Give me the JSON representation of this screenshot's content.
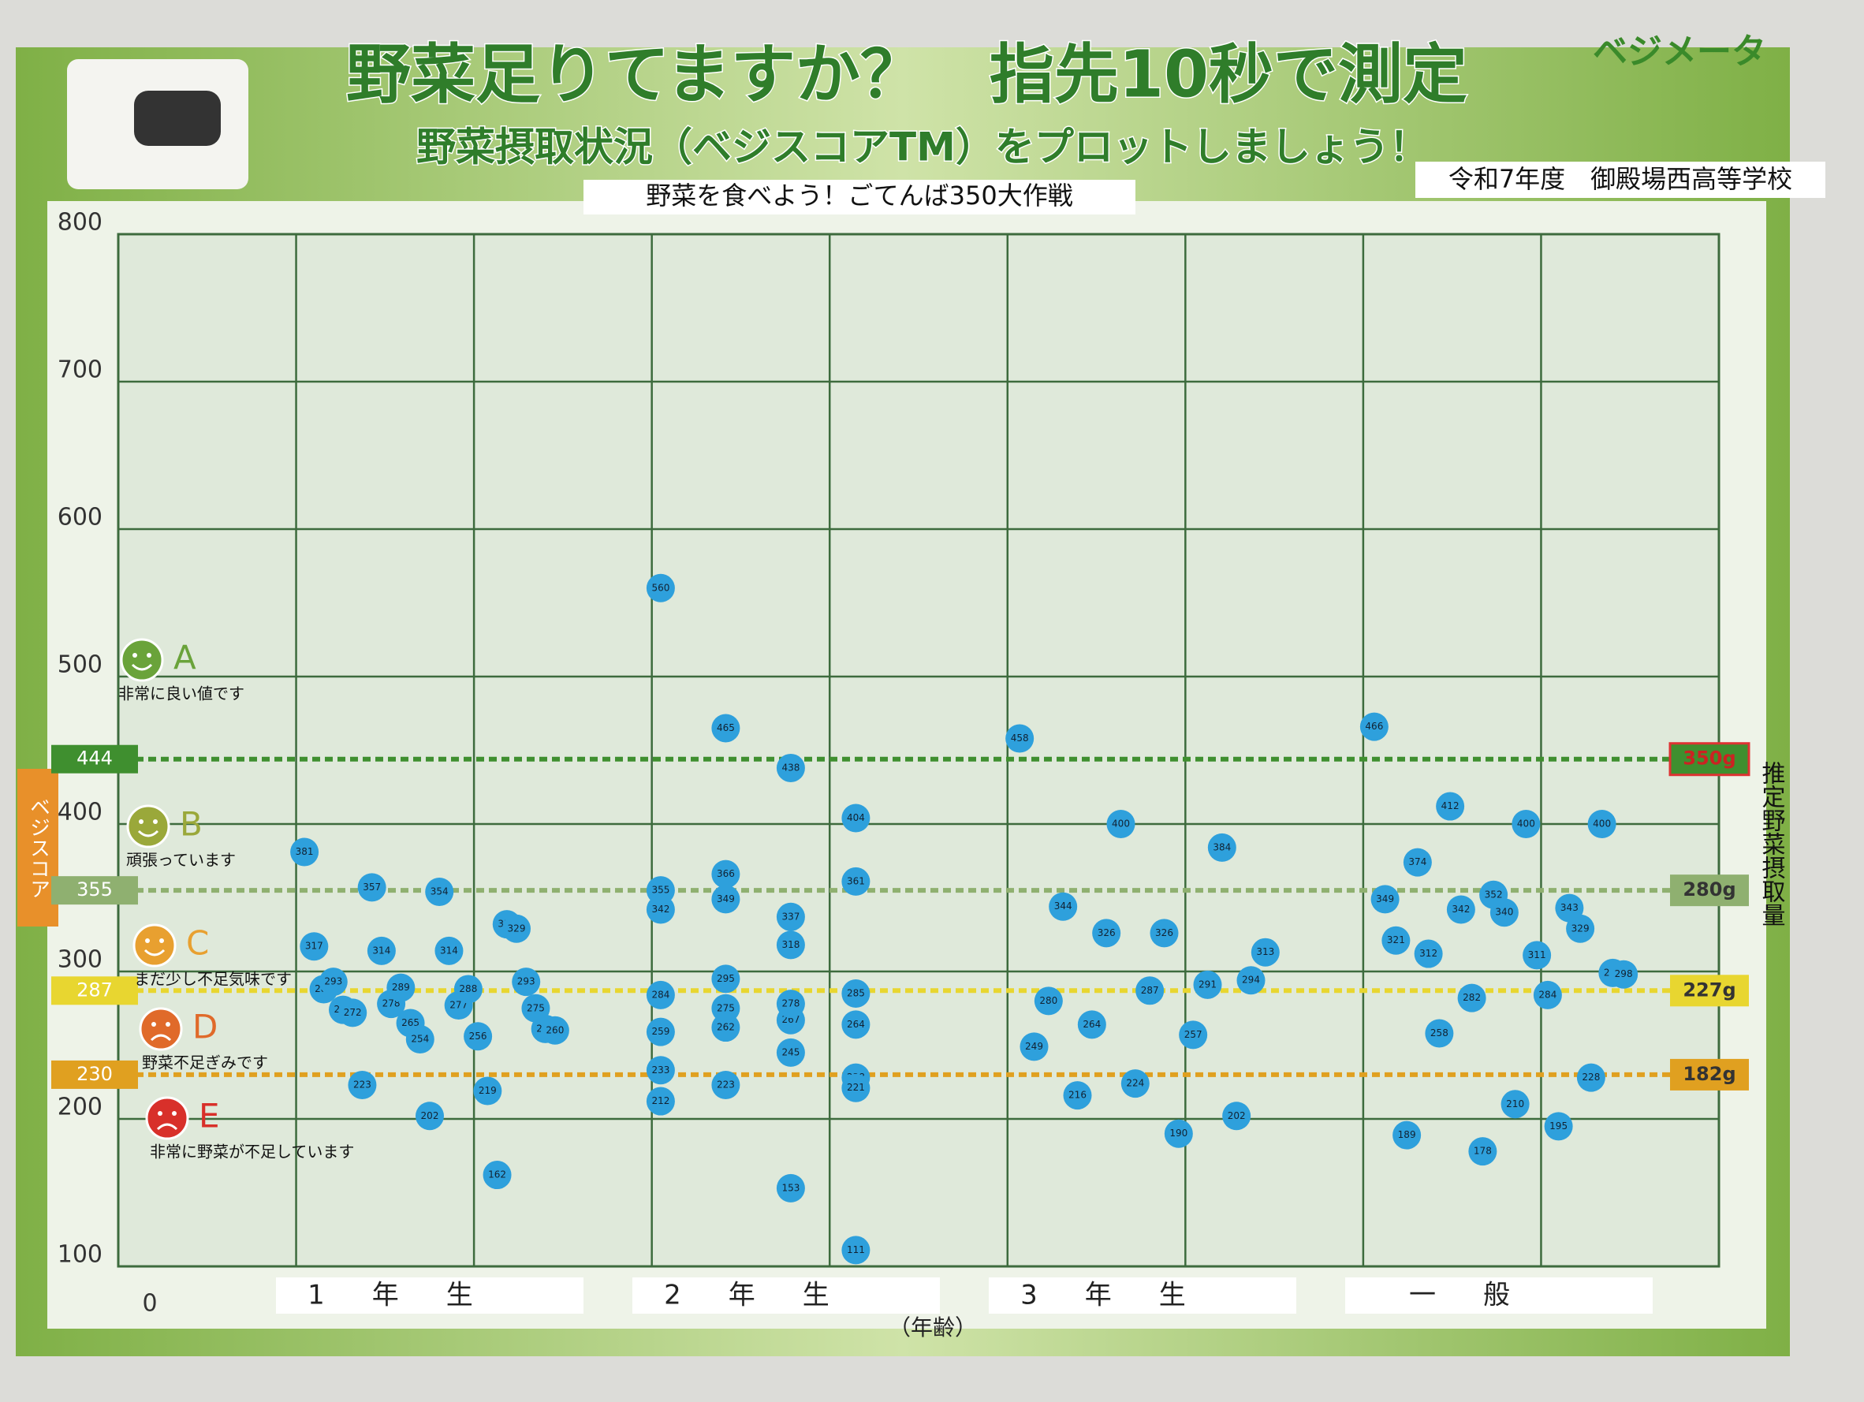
{
  "chart_data": {
    "type": "scatter",
    "title": "野菜足りてますか？　指先10秒で測定",
    "subtitle": "野菜摂取状況（ベジスコアTM）をプロットしましょう！",
    "brand": "ベジメータ",
    "school": "令和7年度　御殿場西高等学校",
    "banner": "野菜を食べよう！ごてんば350大作戦",
    "y_label": "ベジスコア",
    "y2_label": "推定野菜摂取量",
    "x_label": "（年齢）",
    "origin_label": "0",
    "ylim": [
      100,
      800
    ],
    "yticks": [
      100,
      200,
      300,
      400,
      500,
      600,
      700,
      800
    ],
    "grid": true,
    "ref_lines": [
      {
        "value": 444,
        "label": "350g",
        "color": "#3f8f2f"
      },
      {
        "value": 355,
        "label": "280g",
        "color": "#8fb070"
      },
      {
        "value": 287,
        "label": "227g",
        "color": "#e8d630"
      },
      {
        "value": 230,
        "label": "182g",
        "color": "#e0a020"
      }
    ],
    "ratings": [
      {
        "grade": "A",
        "text": "非常に良い値です",
        "color": "#6aa33a"
      },
      {
        "grade": "B",
        "text": "頑張っています",
        "color": "#9aa83a"
      },
      {
        "grade": "C",
        "text": "まだ少し不足気味です",
        "color": "#e8a030"
      },
      {
        "grade": "D",
        "text": "野菜不足ぎみです",
        "color": "#e06a2a"
      },
      {
        "grade": "E",
        "text": "非常に野菜が不足しています",
        "color": "#d8302a"
      }
    ],
    "series": [
      {
        "name": "1年生",
        "color": "#2ea0dc",
        "values": [
          381,
          357,
          354,
          332,
          317,
          314,
          314,
          329,
          288,
          278,
          277,
          293,
          293,
          289,
          288,
          275,
          274,
          265,
          256,
          261,
          272,
          254,
          219,
          260,
          223,
          202,
          162
        ]
      },
      {
        "name": "2年生",
        "color": "#2ea0dc",
        "values": [
          560,
          465,
          438,
          404,
          355,
          349,
          337,
          361,
          342,
          366,
          318,
          285,
          284,
          275,
          267,
          264,
          259,
          262,
          245,
          228,
          233,
          295,
          278,
          221,
          212,
          223,
          153,
          111
        ]
      },
      {
        "name": "3年生",
        "color": "#2ea0dc",
        "values": [
          458,
          400,
          384,
          344,
          326,
          313,
          326,
          291,
          280,
          287,
          294,
          264,
          257,
          249,
          224,
          202,
          216,
          190
        ]
      },
      {
        "name": "一般",
        "color": "#2ea0dc",
        "values": [
          466,
          412,
          400,
          400,
          374,
          352,
          343,
          349,
          342,
          311,
          299,
          312,
          340,
          329,
          321,
          282,
          284,
          298,
          258,
          210,
          228,
          189,
          178,
          195
        ]
      }
    ]
  }
}
